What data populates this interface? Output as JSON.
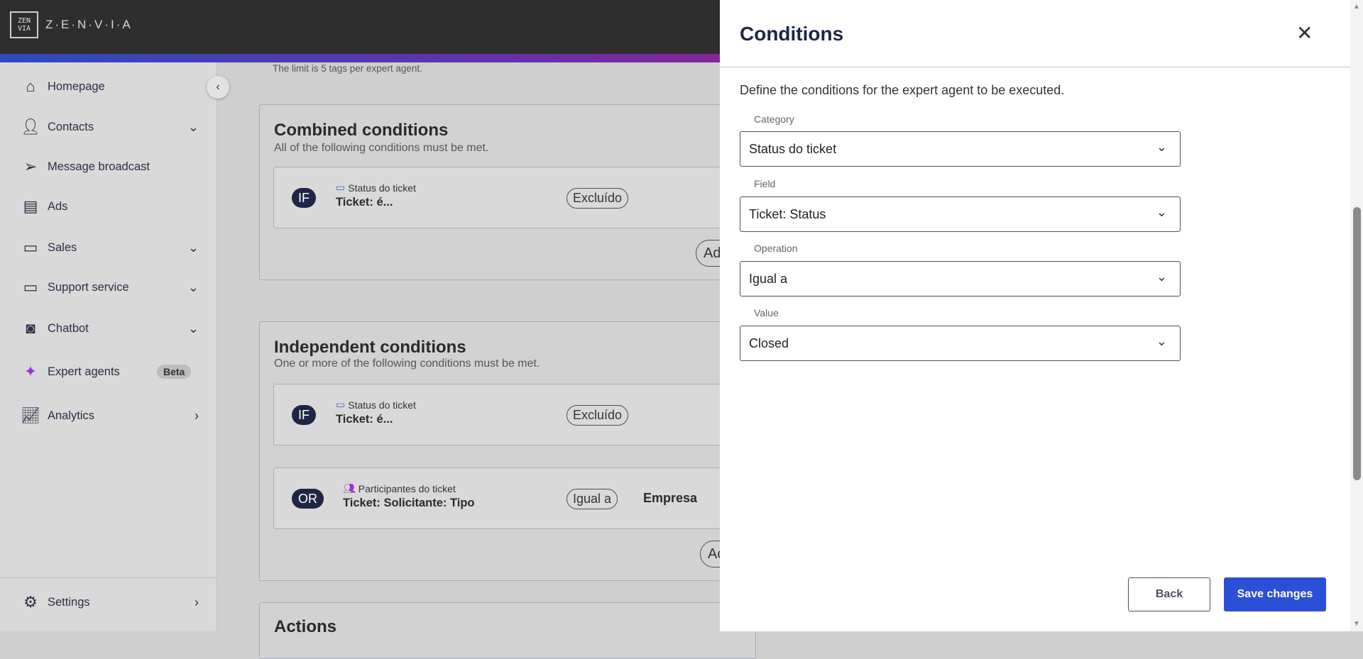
{
  "header": {
    "logo_mark": "ZEN VIA",
    "brand": "Z·E·N·V·I·A"
  },
  "sidebar": {
    "items": [
      {
        "label": "Homepage",
        "icon": "home-icon"
      },
      {
        "label": "Contacts",
        "icon": "person-icon"
      },
      {
        "label": "Message broadcast",
        "icon": "send-icon"
      },
      {
        "label": "Ads",
        "icon": "document-icon"
      },
      {
        "label": "Sales",
        "icon": "chat-icon"
      },
      {
        "label": "Support service",
        "icon": "ticket-icon"
      },
      {
        "label": "Chatbot",
        "icon": "robot-icon"
      },
      {
        "label": "Expert agents",
        "icon": "sparkle-icon",
        "badge": "Beta"
      },
      {
        "label": "Analytics",
        "icon": "chart-icon"
      }
    ],
    "settings": "Settings"
  },
  "main": {
    "hint": "The limit is 5 tags per expert agent.",
    "combined": {
      "title": "Combined conditions",
      "subtitle": "All of the following conditions must be met.",
      "rows": [
        {
          "op": "IF",
          "category": "Status do ticket",
          "field": "Ticket: é...",
          "operator": "Excluído"
        }
      ],
      "add": "Ad"
    },
    "independent": {
      "title": "Independent conditions",
      "subtitle": "One or more of the following conditions must be met.",
      "rows": [
        {
          "op": "IF",
          "category": "Status do ticket",
          "field": "Ticket: é...",
          "operator": "Excluído"
        },
        {
          "op": "OR",
          "category": "Participantes do ticket",
          "field": "Ticket: Solicitante: Tipo",
          "operator": "Igual a",
          "value": "Empresa"
        }
      ],
      "add": "Ac"
    },
    "actions": {
      "title": "Actions"
    }
  },
  "panel": {
    "title": "Conditions",
    "description": "Define the conditions for the expert agent to be executed.",
    "fields": [
      {
        "label": "Category",
        "value": "Status do ticket"
      },
      {
        "label": "Field",
        "value": "Ticket: Status"
      },
      {
        "label": "Operation",
        "value": "Igual a"
      },
      {
        "label": "Value",
        "value": "Closed"
      }
    ],
    "back": "Back",
    "save": "Save changes"
  },
  "colors": {
    "primary": "#2b4fd6",
    "badge": "#1f2645",
    "header": "#2e2e2e"
  }
}
